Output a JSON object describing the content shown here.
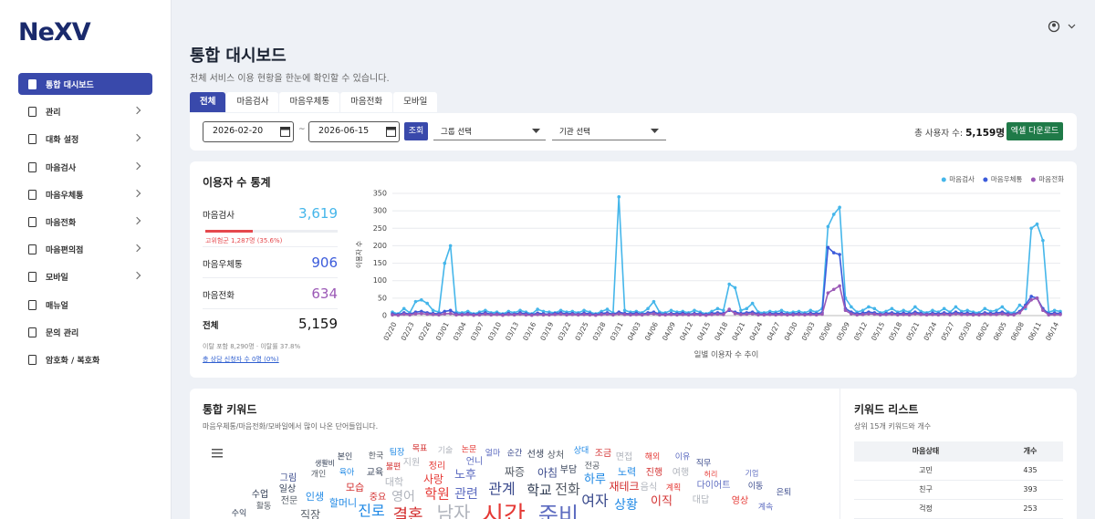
{
  "sidebar": {
    "logo": "NeXV",
    "menu": [
      {
        "label": "통합 대시보드",
        "active": true,
        "submenu": false
      },
      {
        "label": "관리",
        "active": false,
        "submenu": true
      },
      {
        "label": "대화 설정",
        "active": false,
        "submenu": true
      },
      {
        "label": "마음검사",
        "active": false,
        "submenu": true
      },
      {
        "label": "마음우체통",
        "active": false,
        "submenu": true
      },
      {
        "label": "마음전화",
        "active": false,
        "submenu": true
      },
      {
        "label": "마음편의점",
        "active": false,
        "submenu": true
      },
      {
        "label": "모바일",
        "active": false,
        "submenu": true
      },
      {
        "label": "매뉴얼",
        "active": false,
        "submenu": false
      },
      {
        "label": "문의 관리",
        "active": false,
        "submenu": false
      },
      {
        "label": "암호화 / 복호화",
        "active": false,
        "submenu": false
      }
    ]
  },
  "header": {
    "title": "통합 대시보드",
    "subtitle": "전체 서비스 이용 현황을 한눈에 확인할 수 있습니다."
  },
  "tabs": [
    {
      "label": "전체",
      "active": true
    },
    {
      "label": "마음검사",
      "active": false
    },
    {
      "label": "마음우체통",
      "active": false
    },
    {
      "label": "마음전화",
      "active": false
    },
    {
      "label": "모바일",
      "active": false
    }
  ],
  "filters": {
    "start_date": "2026-02-20",
    "separator": "~",
    "end_date": "2026-06-15",
    "search_button": "조회",
    "group_select": "그룹 선택",
    "org_select": "기관 선택",
    "total_label": "총 사용자 수:",
    "total_value": "5,159명",
    "download_button": "엑셀 다운로드"
  },
  "stats": {
    "title": "이용자 수 통계",
    "items": [
      {
        "label": "마음검사",
        "value": "3,619",
        "color": "#45b6ea"
      },
      {
        "label": "마음우체통",
        "value": "906",
        "color": "#3b5bdb"
      },
      {
        "label": "마음전화",
        "value": "634",
        "color": "#9b59b6"
      }
    ],
    "high_risk": {
      "label": "고위험군 1,287명 (35.6%)",
      "percent": 35.6
    },
    "total": {
      "label": "전체",
      "value": "5,159"
    },
    "note": "이탈 포함 8,290명 · 이탈률 37.8%",
    "link": "총 상담 신청자 수 0명 (0%)"
  },
  "chart_data": {
    "type": "line",
    "x_label": "일별 이용자 수 추이",
    "y_label": "이용자 수",
    "categories": [
      "02/20",
      null,
      null,
      "02/23",
      null,
      null,
      "02/26",
      null,
      null,
      "03/01",
      null,
      null,
      "03/04",
      null,
      null,
      "03/07",
      null,
      null,
      "03/10",
      null,
      null,
      "03/13",
      null,
      null,
      "03/16",
      null,
      null,
      "03/19",
      null,
      null,
      "03/22",
      null,
      null,
      "03/25",
      null,
      null,
      "03/28",
      null,
      null,
      "03/31",
      null,
      null,
      "04/03",
      null,
      null,
      "04/06",
      null,
      null,
      "04/09",
      null,
      null,
      "04/12",
      null,
      null,
      "04/15",
      null,
      null,
      "04/18",
      null,
      null,
      "04/21",
      null,
      null,
      "04/24",
      null,
      null,
      "04/27",
      null,
      null,
      "04/30",
      null,
      null,
      "05/03",
      null,
      null,
      "05/06",
      null,
      null,
      "05/09",
      null,
      null,
      "05/12",
      null,
      null,
      "05/15",
      null,
      null,
      "05/18",
      null,
      null,
      "05/21",
      null,
      null,
      "05/24",
      null,
      null,
      "05/27",
      null,
      null,
      "05/30",
      null,
      null,
      "06/02",
      null,
      null,
      "06/05",
      null,
      null,
      "06/08",
      null,
      null,
      "06/11",
      null,
      null,
      "06/14",
      null
    ],
    "series": [
      {
        "name": "마음검사",
        "color": "#45b6ea",
        "values": [
          10,
          5,
          20,
          8,
          40,
          45,
          35,
          15,
          10,
          150,
          200,
          10,
          8,
          12,
          5,
          10,
          15,
          8,
          10,
          5,
          12,
          8,
          15,
          10,
          5,
          18,
          12,
          10,
          8,
          15,
          10,
          12,
          8,
          15,
          10,
          5,
          12,
          18,
          8,
          340,
          15,
          10,
          12,
          8,
          20,
          40,
          10,
          8,
          15,
          10,
          12,
          8,
          15,
          10,
          5,
          12,
          20,
          15,
          90,
          80,
          15,
          20,
          35,
          10,
          8,
          12,
          10,
          15,
          8,
          10,
          12,
          8,
          15,
          10,
          20,
          255,
          290,
          310,
          50,
          25,
          10,
          15,
          25,
          20,
          8,
          12,
          20,
          10,
          15,
          10,
          25,
          12,
          8,
          15,
          10,
          20,
          10,
          25,
          12,
          15,
          10,
          8,
          20,
          12,
          15,
          25,
          10,
          8,
          30,
          20,
          250,
          262,
          215,
          10,
          15,
          12
        ]
      },
      {
        "name": "마음우체통",
        "color": "#3b5bdb",
        "values": [
          5,
          3,
          8,
          4,
          10,
          12,
          8,
          6,
          5,
          12,
          15,
          5,
          4,
          6,
          3,
          5,
          8,
          4,
          5,
          3,
          6,
          4,
          8,
          5,
          3,
          7,
          5,
          4,
          6,
          8,
          5,
          6,
          4,
          7,
          5,
          3,
          6,
          8,
          4,
          10,
          6,
          5,
          7,
          4,
          8,
          10,
          5,
          4,
          6,
          5,
          7,
          4,
          6,
          5,
          3,
          6,
          8,
          6,
          15,
          10,
          6,
          8,
          10,
          5,
          4,
          6,
          5,
          7,
          4,
          5,
          6,
          4,
          7,
          5,
          8,
          195,
          180,
          175,
          20,
          10,
          5,
          7,
          10,
          8,
          4,
          6,
          8,
          5,
          7,
          5,
          10,
          6,
          4,
          7,
          5,
          8,
          5,
          10,
          6,
          7,
          5,
          4,
          8,
          6,
          7,
          10,
          5,
          4,
          12,
          30,
          55,
          50,
          20,
          5,
          7,
          6
        ]
      },
      {
        "name": "마음전화",
        "color": "#9b59b6",
        "values": [
          2,
          1,
          4,
          2,
          5,
          6,
          4,
          3,
          2,
          5,
          6,
          2,
          2,
          3,
          1,
          2,
          4,
          2,
          3,
          1,
          3,
          2,
          4,
          2,
          1,
          3,
          2,
          2,
          3,
          4,
          2,
          3,
          2,
          3,
          2,
          1,
          3,
          4,
          2,
          5,
          3,
          2,
          3,
          2,
          4,
          5,
          2,
          2,
          3,
          2,
          3,
          2,
          3,
          2,
          1,
          3,
          4,
          3,
          18,
          6,
          3,
          4,
          5,
          2,
          2,
          3,
          2,
          3,
          2,
          2,
          3,
          2,
          3,
          2,
          4,
          65,
          75,
          85,
          15,
          5,
          2,
          3,
          5,
          4,
          2,
          3,
          4,
          2,
          3,
          2,
          5,
          3,
          2,
          3,
          2,
          4,
          2,
          5,
          3,
          3,
          2,
          2,
          4,
          3,
          3,
          5,
          2,
          2,
          8,
          25,
          45,
          50,
          15,
          2,
          3,
          3
        ]
      }
    ],
    "ylim": [
      0,
      350
    ],
    "yticks": [
      0,
      50,
      100,
      150,
      200,
      250,
      300,
      350
    ],
    "grid": true,
    "legend": "top-right"
  },
  "keyword_cloud": {
    "title": "통합 키워드",
    "subtitle": "마음우체통/마음전화/모바일에서 많이 나온 단어들입니다.",
    "words": [
      "본인",
      "한국",
      "팀장",
      "목표",
      "기술",
      "논문",
      "얼마",
      "순간",
      "선생",
      "상처",
      "상대",
      "조금",
      "면접",
      "해외",
      "이유",
      "직무",
      "생활비",
      "개인",
      "육아",
      "불편",
      "지원",
      "정리",
      "언니",
      "아침",
      "부담",
      "전공",
      "노력",
      "진행",
      "여행",
      "허리",
      "기업",
      "그림",
      "교육",
      "짜증",
      "하루",
      "재테크",
      "음식",
      "계획",
      "다이어트",
      "이동",
      "일상",
      "전문",
      "인생",
      "모습",
      "대학",
      "사랑",
      "노후",
      "관계",
      "학교",
      "전화",
      "상황",
      "이직",
      "대답",
      "영상",
      "계속",
      "은퇴",
      "수업",
      "활동",
      "할머니",
      "중요",
      "영어",
      "학원",
      "관련",
      "여자",
      "수익",
      "직장",
      "진로",
      "결혼",
      "남자",
      "시간",
      "준비"
    ]
  },
  "keyword_list": {
    "title": "키워드 리스트",
    "subtitle": "상위 15개 키워드와 개수",
    "columns": [
      "마음상태",
      "개수"
    ],
    "rows": [
      [
        "고민",
        "435"
      ],
      [
        "친구",
        "393"
      ],
      [
        "걱정",
        "253"
      ]
    ]
  }
}
